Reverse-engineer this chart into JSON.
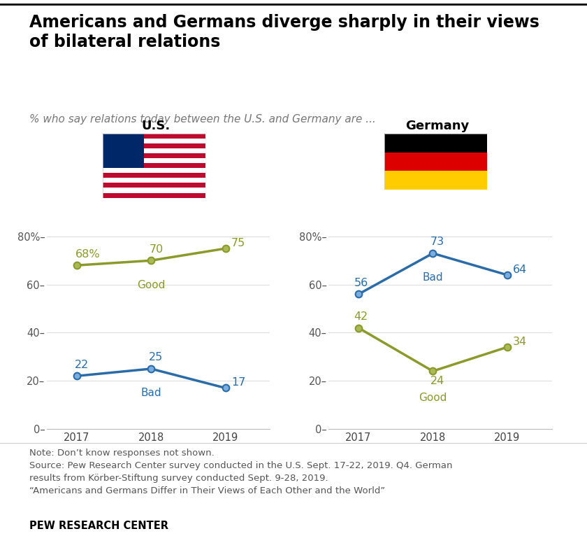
{
  "title": "Americans and Germans diverge sharply in their views\nof bilateral relations",
  "subtitle": "% who say relations today between the U.S. and Germany are ...",
  "years": [
    2017,
    2018,
    2019
  ],
  "us_good": [
    68,
    70,
    75
  ],
  "us_bad": [
    22,
    25,
    17
  ],
  "de_good": [
    42,
    24,
    34
  ],
  "de_bad": [
    56,
    73,
    64
  ],
  "good_color": "#8B9A2A",
  "bad_color": "#2B6CA8",
  "note_text": "Note: Don’t know responses not shown.\nSource: Pew Research Center survey conducted in the U.S. Sept. 17-22, 2019. Q4. German\nresults from Körber-Stiftung survey conducted Sept. 9-28, 2019.\n“Americans and Germans Differ in Their Views of Each Other and the World”",
  "source_bold": "PEW RESEARCH CENTER",
  "ylim": [
    0,
    88
  ],
  "yticks": [
    0,
    20,
    40,
    60,
    80
  ],
  "background_color": "#FFFFFF"
}
